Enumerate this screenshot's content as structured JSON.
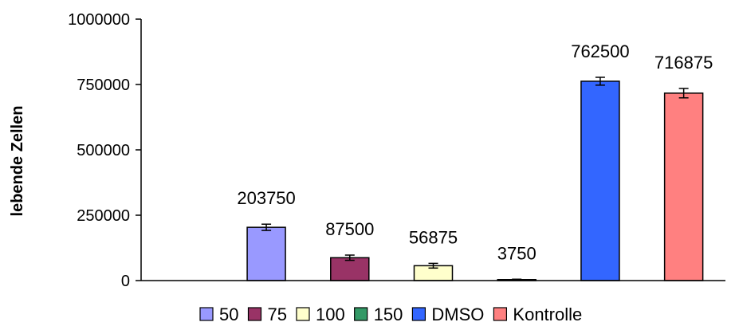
{
  "chart_data": {
    "type": "bar",
    "title": "",
    "xlabel": "",
    "ylabel": "lebende Zellen",
    "ylim": [
      0,
      1000000
    ],
    "yticks": [
      0,
      250000,
      500000,
      750000,
      1000000
    ],
    "ytick_labels": [
      "0",
      "250000",
      "500000",
      "750000",
      "1000000"
    ],
    "grid": false,
    "legend_position": "bottom",
    "categories": [
      "",
      "50",
      "75",
      "100",
      "150",
      "DMSO",
      "Kontrolle"
    ],
    "series": [
      {
        "values": [
          null,
          203750,
          87500,
          56875,
          3750,
          762500,
          716875
        ],
        "errors": [
          null,
          12000,
          10000,
          9000,
          1500,
          15000,
          18000
        ],
        "labels": [
          "",
          "203750",
          "87500",
          "56875",
          "3750",
          "762500",
          "716875"
        ],
        "colors": [
          "",
          "#9999ff",
          "#993366",
          "#ffffcc",
          "#339966",
          "#3366ff",
          "#ff8080"
        ]
      }
    ],
    "legend": [
      {
        "label": "50",
        "color": "#9999ff"
      },
      {
        "label": "75",
        "color": "#993366"
      },
      {
        "label": "100",
        "color": "#ffffcc"
      },
      {
        "label": "150",
        "color": "#339966"
      },
      {
        "label": "DMSO",
        "color": "#3366ff"
      },
      {
        "label": "Kontrolle",
        "color": "#ff8080"
      }
    ]
  }
}
